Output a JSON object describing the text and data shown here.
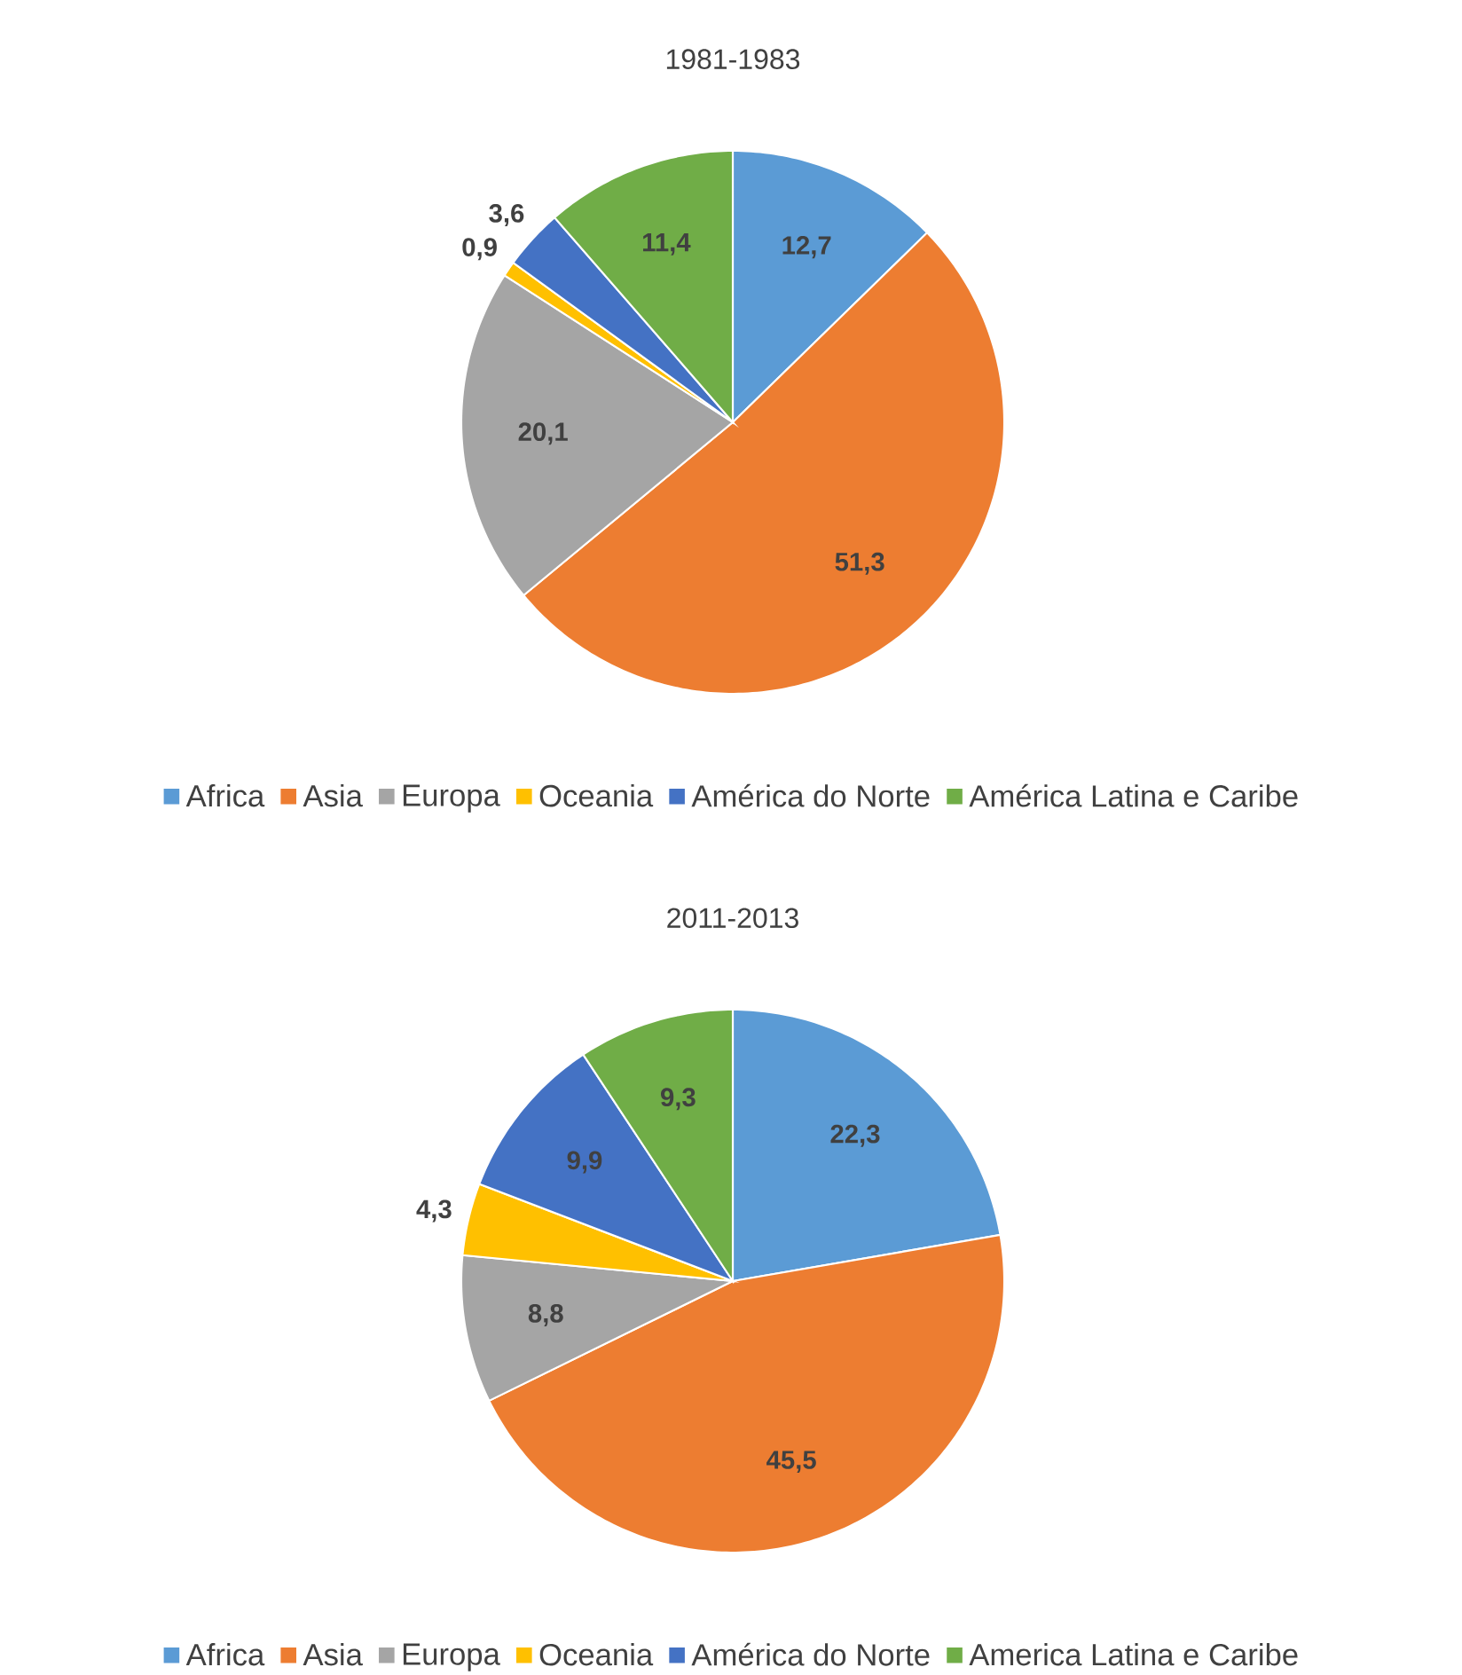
{
  "chart_data": [
    {
      "type": "pie",
      "title": "1981-1983",
      "categories": [
        "Africa",
        "Asia",
        "Europa",
        "Oceania",
        "América do Norte",
        "América Latina e Caribe"
      ],
      "values": [
        12.7,
        51.3,
        20.1,
        0.9,
        3.6,
        11.4
      ],
      "value_labels": [
        "12,7",
        "51,3",
        "20,1",
        "0,9",
        "3,6",
        "11,4"
      ],
      "colors": [
        "#5b9bd5",
        "#ed7d31",
        "#a5a5a5",
        "#ffc000",
        "#4472c4",
        "#70ad47"
      ],
      "legend": "bottom"
    },
    {
      "type": "pie",
      "title": "2011-2013",
      "categories": [
        "Africa",
        "Asia",
        "Europa",
        "Oceania",
        "América do Norte",
        "America Latina e Caribe"
      ],
      "values": [
        22.3,
        45.5,
        8.8,
        4.3,
        9.9,
        9.3
      ],
      "value_labels": [
        "22,3",
        "45,5",
        "8,8",
        "4,3",
        "9,9",
        "9,3"
      ],
      "colors": [
        "#5b9bd5",
        "#ed7d31",
        "#a5a5a5",
        "#ffc000",
        "#4472c4",
        "#70ad47"
      ],
      "legend": "bottom"
    }
  ]
}
